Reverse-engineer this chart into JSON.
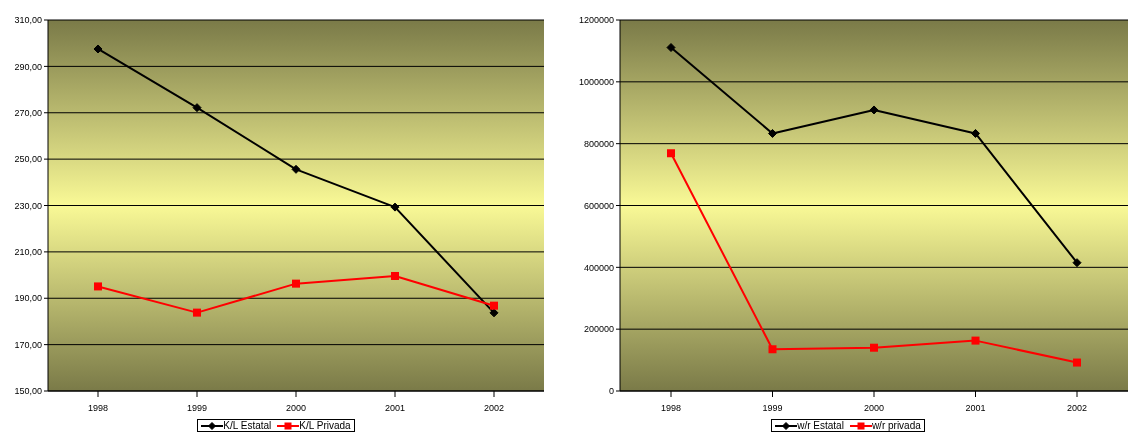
{
  "chart_data": [
    {
      "type": "line",
      "categories": [
        "1998",
        "1999",
        "2000",
        "2001",
        "2002"
      ],
      "ylim": [
        150,
        310
      ],
      "yticks": [
        {
          "value": 150,
          "label": "150,00"
        },
        {
          "value": 170,
          "label": "170,00"
        },
        {
          "value": 190,
          "label": "190,00"
        },
        {
          "value": 210,
          "label": "210,00"
        },
        {
          "value": 230,
          "label": "230,00"
        },
        {
          "value": 250,
          "label": "250,00"
        },
        {
          "value": 270,
          "label": "270,00"
        },
        {
          "value": 290,
          "label": "290,00"
        },
        {
          "value": 310,
          "label": "310,00"
        }
      ],
      "grid": "y",
      "legend": "bottom",
      "series": [
        {
          "name": "K/L Estatal",
          "color": "#000000",
          "marker": "diamond",
          "values": [
            297.5,
            272.2,
            245.6,
            229.3,
            183.7
          ]
        },
        {
          "name": "K/L Privada",
          "color": "#ff0000",
          "marker": "square",
          "values": [
            195.1,
            183.8,
            196.3,
            199.6,
            186.8
          ]
        }
      ]
    },
    {
      "type": "line",
      "categories": [
        "1998",
        "1999",
        "2000",
        "2001",
        "2002"
      ],
      "ylim": [
        0,
        1200000
      ],
      "yticks": [
        0,
        200000,
        400000,
        600000,
        800000,
        1000000,
        1200000
      ],
      "grid": "y",
      "legend": "bottom",
      "series": [
        {
          "name": "w/r Estatal",
          "color": "#000000",
          "marker": "diamond",
          "values": [
            1111000,
            833000,
            909000,
            833000,
            415000
          ]
        },
        {
          "name": "w/r privada",
          "color": "#ff0000",
          "marker": "square",
          "values": [
            769000,
            135000,
            140000,
            163000,
            92000
          ]
        }
      ]
    }
  ]
}
